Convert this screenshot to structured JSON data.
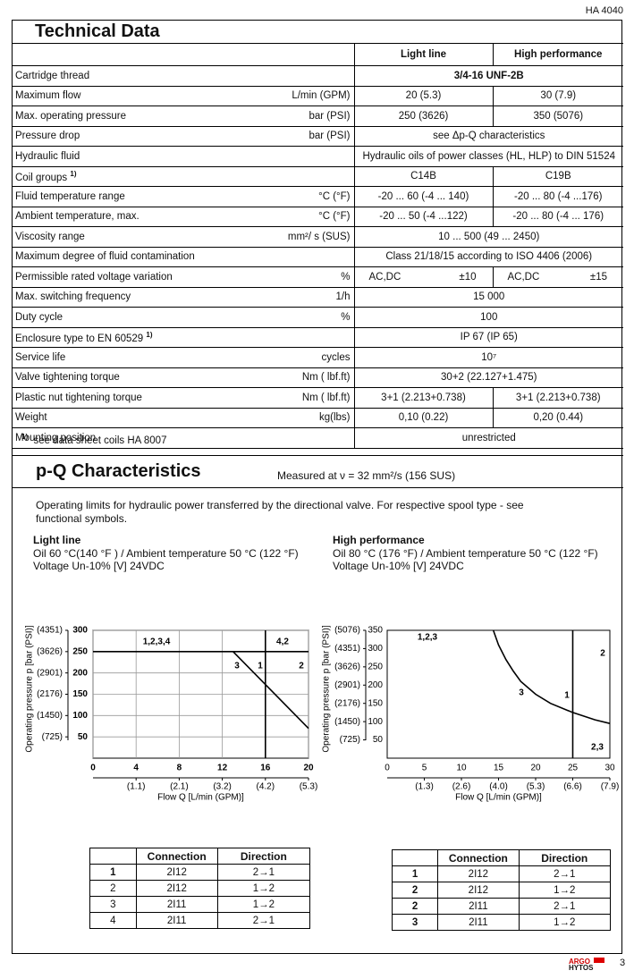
{
  "header": {
    "doc_id": "HA 4040",
    "title": "Technical Data"
  },
  "tech_table": {
    "columns": [
      "Light line",
      "High performance"
    ],
    "rows": [
      {
        "label": "Cartridge thread",
        "value": "3/4-16 UNF-2B",
        "bold": true
      },
      {
        "label": "Maximum flow",
        "unit": "L/min (GPM)",
        "values": [
          "20 (5.3)",
          "30 (7.9)"
        ]
      },
      {
        "label": "Max. operating pressure",
        "unit": "bar (PSI)",
        "values": [
          "250 (3626)",
          "350 (5076)"
        ]
      },
      {
        "label": "Pressure drop",
        "unit": "bar (PSI)",
        "value": "see Δp-Q characteristics"
      },
      {
        "label": "Hydraulic fluid",
        "value": "Hydraulic oils of power classes (HL, HLP) to DIN 51524"
      },
      {
        "label": "Coil groups",
        "note": "1)",
        "values": [
          "C14B",
          "C19B"
        ]
      },
      {
        "label": "Fluid temperature range",
        "unit": "°C (°F)",
        "values": [
          "-20 ... 60 (-4 ... 140)",
          "-20 ... 80 (-4 ...176)"
        ]
      },
      {
        "label": "Ambient temperature, max.",
        "unit": "°C (°F)",
        "values": [
          "-20 ... 50 (-4 ...122)",
          "-20 ... 80 (-4 ... 176)"
        ]
      },
      {
        "label": "Viscosity range",
        "unit": "mm²/ s (SUS)",
        "value": "10 ... 500 (49 ... 2450)"
      },
      {
        "label": "Maximum degree of fluid contamination",
        "value": "Class 21/18/15 according to ISO 4406 (2006)"
      },
      {
        "label": "Permissible rated voltage variation",
        "unit": "%",
        "values": [
          [
            "AC,DC",
            "±10"
          ],
          [
            "AC,DC",
            "±15"
          ]
        ]
      },
      {
        "label": "Max. switching frequency",
        "unit": "1/h",
        "value": "15 000"
      },
      {
        "label": "Duty cycle",
        "unit": "%",
        "value": "100"
      },
      {
        "label": "Enclosure type to  EN 60529",
        "note": "1)",
        "value": "IP 67 (IP 65)"
      },
      {
        "label": "Service life",
        "unit": "cycles",
        "value": "10⁷"
      },
      {
        "label": "Valve tightening torque",
        "unit": "Nm ( lbf.ft)",
        "value": "30+2  (22.127+1.475)"
      },
      {
        "label": "Plastic nut tightening torque",
        "unit": "Nm ( lbf.ft)",
        "values": [
          "3+1  (2.213+0.738)",
          "3+1  (2.213+0.738)"
        ]
      },
      {
        "label": "Weight",
        "unit": "kg(lbs)",
        "values": [
          "0,10 (0.22)",
          "0,20 (0.44)"
        ]
      },
      {
        "label": "Mounting position",
        "value": "unrestricted"
      }
    ],
    "footnote": {
      "mark": "1)",
      "text": "see data sheet coils HA 8007"
    }
  },
  "pq": {
    "title": "p-Q Characteristics",
    "measured": "Measured at  ν = 32 mm²/s (156 SUS)",
    "intro": "Operating limits for hydraulic power transferred by the directional valve. For respective spool type - see functional symbols.",
    "conditions": [
      {
        "title": "Light line",
        "lines": [
          "Oil 60 °C(140 °F ) / Ambient temperature 50 °C (122 °F)",
          "Voltage  Un-10% [V] 24VDC"
        ]
      },
      {
        "title": "High performance",
        "lines": [
          "Oil 80 °C (176 °F) / Ambient temperature 50 °C (122 °F)",
          "Voltage  Un-10% [V] 24VDC"
        ]
      }
    ],
    "charts": [
      {
        "y_title": "Operating pressure p [bar (PSI)]",
        "x_title": "Flow Q [L/min (GPM)]",
        "xlim": [
          0,
          20
        ],
        "ylim": [
          0,
          300
        ],
        "grid": true,
        "xticks": [
          0,
          4,
          8,
          12,
          16,
          20
        ],
        "yticks": [
          50,
          100,
          150,
          200,
          250,
          300
        ],
        "x2ticks": [
          {
            "value": 4,
            "label": "(1.1)"
          },
          {
            "value": 8,
            "label": "(2.1)"
          },
          {
            "value": 12,
            "label": "(3.2)"
          },
          {
            "value": 16,
            "label": "(4.2)"
          },
          {
            "value": 20,
            "label": "(5.3)"
          }
        ],
        "y2ticks": [
          {
            "value": 50,
            "label": "(725)"
          },
          {
            "value": 100,
            "label": "(1450)"
          },
          {
            "value": 150,
            "label": "(2176)"
          },
          {
            "value": 200,
            "label": "(2901)"
          },
          {
            "value": 250,
            "label": "(3626)"
          },
          {
            "value": 300,
            "label": "(4351)"
          }
        ],
        "curves": [
          {
            "x": [
              0,
              20
            ],
            "y": [
              250,
              250
            ]
          },
          {
            "x": [
              16,
              16
            ],
            "y": [
              0,
              300
            ]
          },
          {
            "x": [
              13,
              20
            ],
            "y": [
              250,
              70
            ]
          }
        ],
        "annotations": [
          "1,2,3,4",
          "4,2",
          "3",
          "1",
          "2"
        ],
        "table": {
          "columns": [
            "Connection",
            "Direction"
          ],
          "rows": [
            [
              "1",
              "2I12",
              "2→1"
            ],
            [
              "2",
              "2I12",
              "1→2"
            ],
            [
              "3",
              "2I11",
              "1→2"
            ],
            [
              "4",
              "2I11",
              "2→1"
            ]
          ]
        }
      },
      {
        "y_title": "Operating pressure p [bar (PSI)]",
        "x_title": "Flow Q [L/min (GPM)]",
        "xlim": [
          0,
          30
        ],
        "ylim": [
          0,
          350
        ],
        "grid": false,
        "xticks": [
          0,
          5,
          10,
          15,
          20,
          25,
          30
        ],
        "yticks": [
          50,
          100,
          150,
          200,
          250,
          300,
          350
        ],
        "x2ticks": [
          {
            "value": 5,
            "label": "(1.3)"
          },
          {
            "value": 10,
            "label": "(2.6)"
          },
          {
            "value": 15,
            "label": "(4.0)"
          },
          {
            "value": 20,
            "label": "(5.3)"
          },
          {
            "value": 25,
            "label": "(6.6)"
          },
          {
            "value": 30,
            "label": "(7.9)"
          }
        ],
        "y2ticks": [
          {
            "value": 50,
            "label": "(725)"
          },
          {
            "value": 100,
            "label": "(1450)"
          },
          {
            "value": 150,
            "label": "(2176)"
          },
          {
            "value": 200,
            "label": "(2901)"
          },
          {
            "value": 250,
            "label": "(3626)"
          },
          {
            "value": 300,
            "label": "(4351)"
          },
          {
            "value": 350,
            "label": "(5076)"
          }
        ],
        "curves": [
          {
            "x": [
              25,
              25
            ],
            "y": [
              0,
              350
            ]
          },
          {
            "x": [
              14.3,
              15,
              16,
              17,
              18,
              20,
              22,
              25,
              28,
              30
            ],
            "y": [
              350,
              310,
              270,
              238,
              210,
              175,
              150,
              125,
              105,
              95
            ]
          }
        ],
        "annotations": [
          "1,2,3",
          "2",
          "1",
          "3",
          "2,3"
        ],
        "table": {
          "columns": [
            "Connection",
            "Direction"
          ],
          "rows": [
            [
              "1",
              "2I12",
              "2→1"
            ],
            [
              "2",
              "2I12",
              "1→2"
            ],
            [
              "2",
              "2I11",
              "2→1"
            ],
            [
              "3",
              "2I11",
              "1→2"
            ]
          ]
        }
      }
    ]
  },
  "footer": {
    "brand": [
      "ARGO",
      "HYTOS"
    ],
    "page": "3"
  }
}
